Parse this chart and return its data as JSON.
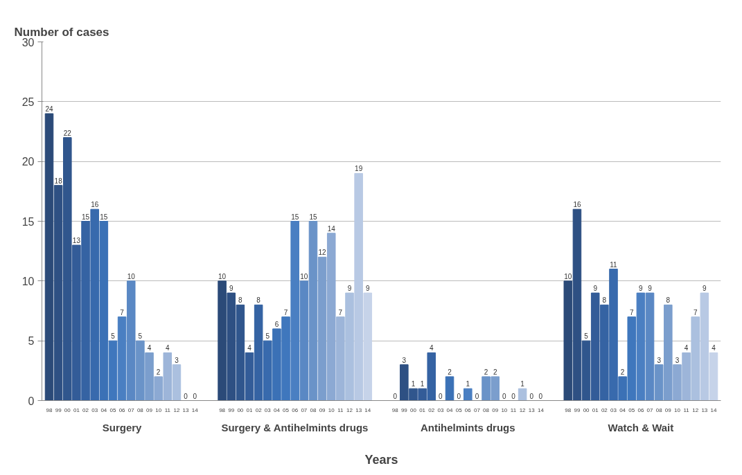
{
  "chart_data": {
    "type": "bar",
    "ylabel": "Number of cases",
    "xlabel": "Years",
    "categories": [
      "Surgery",
      "Surgery & Antihelmints drugs",
      "Antihelmints drugs",
      "Watch & Wait"
    ],
    "series": [
      {
        "name": "98",
        "color": "#2b4a78",
        "values": [
          24,
          10,
          0,
          10
        ]
      },
      {
        "name": "99",
        "color": "#2e5083",
        "values": [
          18,
          9,
          3,
          16
        ]
      },
      {
        "name": "00",
        "color": "#30568d",
        "values": [
          22,
          8,
          1,
          5
        ]
      },
      {
        "name": "01",
        "color": "#335c98",
        "values": [
          13,
          4,
          1,
          9
        ]
      },
      {
        "name": "02",
        "color": "#3563a3",
        "values": [
          15,
          8,
          4,
          8
        ]
      },
      {
        "name": "03",
        "color": "#386aad",
        "values": [
          16,
          5,
          0,
          11
        ]
      },
      {
        "name": "04",
        "color": "#3b71b6",
        "values": [
          15,
          6,
          2,
          2
        ]
      },
      {
        "name": "05",
        "color": "#3f77bd",
        "values": [
          5,
          7,
          0,
          7
        ]
      },
      {
        "name": "06",
        "color": "#4a7fc2",
        "values": [
          7,
          15,
          1,
          9
        ]
      },
      {
        "name": "07",
        "color": "#5a88c4",
        "values": [
          10,
          10,
          0,
          9
        ]
      },
      {
        "name": "08",
        "color": "#6a93c8",
        "values": [
          5,
          15,
          2,
          3
        ]
      },
      {
        "name": "09",
        "color": "#7b9ecd",
        "values": [
          4,
          12,
          2,
          8
        ]
      },
      {
        "name": "10",
        "color": "#8ca9d3",
        "values": [
          2,
          14,
          0,
          3
        ]
      },
      {
        "name": "11",
        "color": "#9db5d9",
        "values": [
          4,
          7,
          0,
          4
        ]
      },
      {
        "name": "12",
        "color": "#abc0df",
        "values": [
          3,
          9,
          1,
          7
        ]
      },
      {
        "name": "13",
        "color": "#b8c9e4",
        "values": [
          0,
          19,
          0,
          9
        ]
      },
      {
        "name": "14",
        "color": "#c6d3e9",
        "values": [
          0,
          9,
          0,
          4
        ]
      }
    ],
    "ylim": [
      0,
      30
    ],
    "yticks": [
      0,
      5,
      10,
      15,
      20,
      25,
      30
    ],
    "grid": "y",
    "data_labels": true
  }
}
